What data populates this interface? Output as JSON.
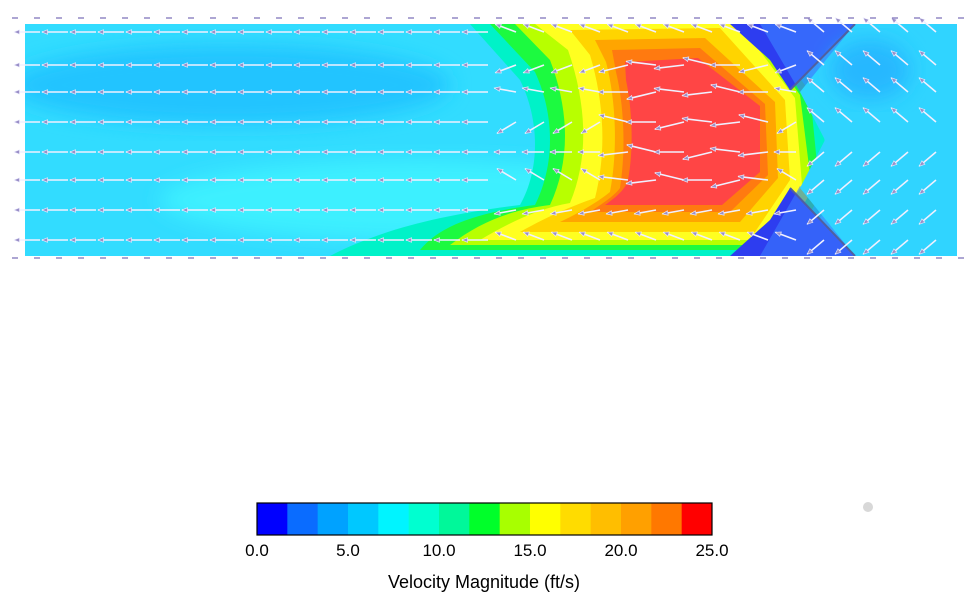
{
  "chart_data": {
    "type": "heatmap",
    "description_type": "velocity contour with vector arrows",
    "colorbar": {
      "min": 0.0,
      "max": 25.0,
      "bands": 15,
      "band_colors": [
        "#0000ff",
        "#0a6cff",
        "#00a2ff",
        "#00c8ff",
        "#00f4ff",
        "#00ffd0",
        "#00f89a",
        "#00ff2a",
        "#a8ff00",
        "#ffff00",
        "#ffdc00",
        "#ffbe00",
        "#ffa000",
        "#ff7800",
        "#ff0000"
      ],
      "tick_values": [
        0.0,
        5.0,
        10.0,
        15.0,
        20.0,
        25.0
      ],
      "tick_labels": [
        "0.0",
        "5.0",
        "10.0",
        "15.0",
        "20.0",
        "25.0"
      ],
      "title": "Velocity Magnitude (ft/s)"
    },
    "field": {
      "background_magnitude": 6.5,
      "core_magnitude": 24,
      "flow_direction": "left",
      "grid": false
    }
  }
}
